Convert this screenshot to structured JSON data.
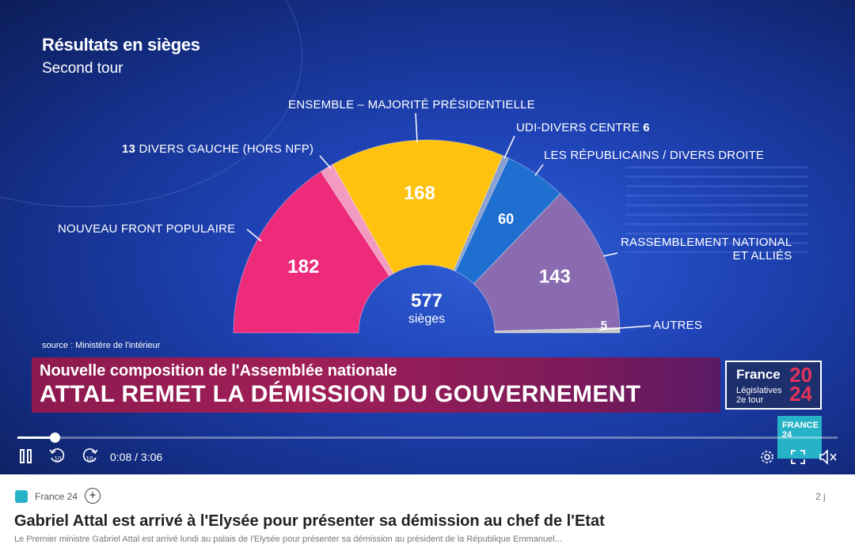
{
  "video": {
    "title": "Résultats en sièges",
    "subtitle": "Second tour",
    "source": "source : Ministère de l'intérieur",
    "center_value": "577",
    "center_label": "sièges",
    "labels": {
      "ensemble": "ENSEMBLE – MAJORITÉ PRÉSIDENTIELLE",
      "udi_name": "UDI-DIVERS CENTRE",
      "udi_value": "6",
      "dvg_value": "13",
      "dvg_name": "DIVERS GAUCHE (HORS NFP)",
      "lr": "LES RÉPUBLICAINS / DIVERS DROITE",
      "nfp": "NOUVEAU FRONT POPULAIRE",
      "rn_line1": "RASSEMBLEMENT NATIONAL",
      "rn_line2": "ET ALLIÉS",
      "autres": "AUTRES"
    },
    "banner": {
      "top": "Nouvelle composition de l'Assemblée nationale",
      "main": "ATTAL REMET LA DÉMISSION DU GOUVERNEMENT"
    },
    "logo": {
      "france": "France",
      "year_top": "20",
      "year_bottom": "24",
      "leg_line1": "Législatives",
      "leg_line2": "2e tour"
    },
    "badge": {
      "line1": "FRANCE",
      "line2": "24"
    }
  },
  "chart_data": {
    "type": "pie",
    "title": "Résultats en sièges",
    "subtitle": "Second tour",
    "total": 577,
    "series": [
      {
        "name": "NOUVEAU FRONT POPULAIRE",
        "value": 182,
        "color": "#ee2a7b"
      },
      {
        "name": "DIVERS GAUCHE (HORS NFP)",
        "value": 13,
        "color": "#f39ac0"
      },
      {
        "name": "ENSEMBLE – MAJORITÉ PRÉSIDENTIELLE",
        "value": 168,
        "color": "#ffc20e"
      },
      {
        "name": "UDI-DIVERS CENTRE",
        "value": 6,
        "color": "#8aa0d0"
      },
      {
        "name": "LES RÉPUBLICAINS / DIVERS DROITE",
        "value": 60,
        "color": "#1f6fd1"
      },
      {
        "name": "RASSEMBLEMENT NATIONAL ET ALLIÉS",
        "value": 143,
        "color": "#8a6bb0"
      },
      {
        "name": "AUTRES",
        "value": 5,
        "color": "#c8c8c8"
      }
    ],
    "data_labels": [
      "182",
      "",
      "168",
      "",
      "60",
      "143",
      "5"
    ]
  },
  "player": {
    "current_time": "0:08",
    "separator": "/",
    "duration": "3:06",
    "progress": 0.045
  },
  "article": {
    "source_name": "France 24",
    "follow_label": "+",
    "time_ago": "2 j",
    "headline": "Gabriel Attal est arrivé à l'Elysée pour présenter sa démission au chef de l'Etat",
    "snippet": "Le Premier ministre Gabriel Attal est arrivé lundi au palais de l'Elysée pour présenter sa démission au président de la République Emmanuel..."
  }
}
